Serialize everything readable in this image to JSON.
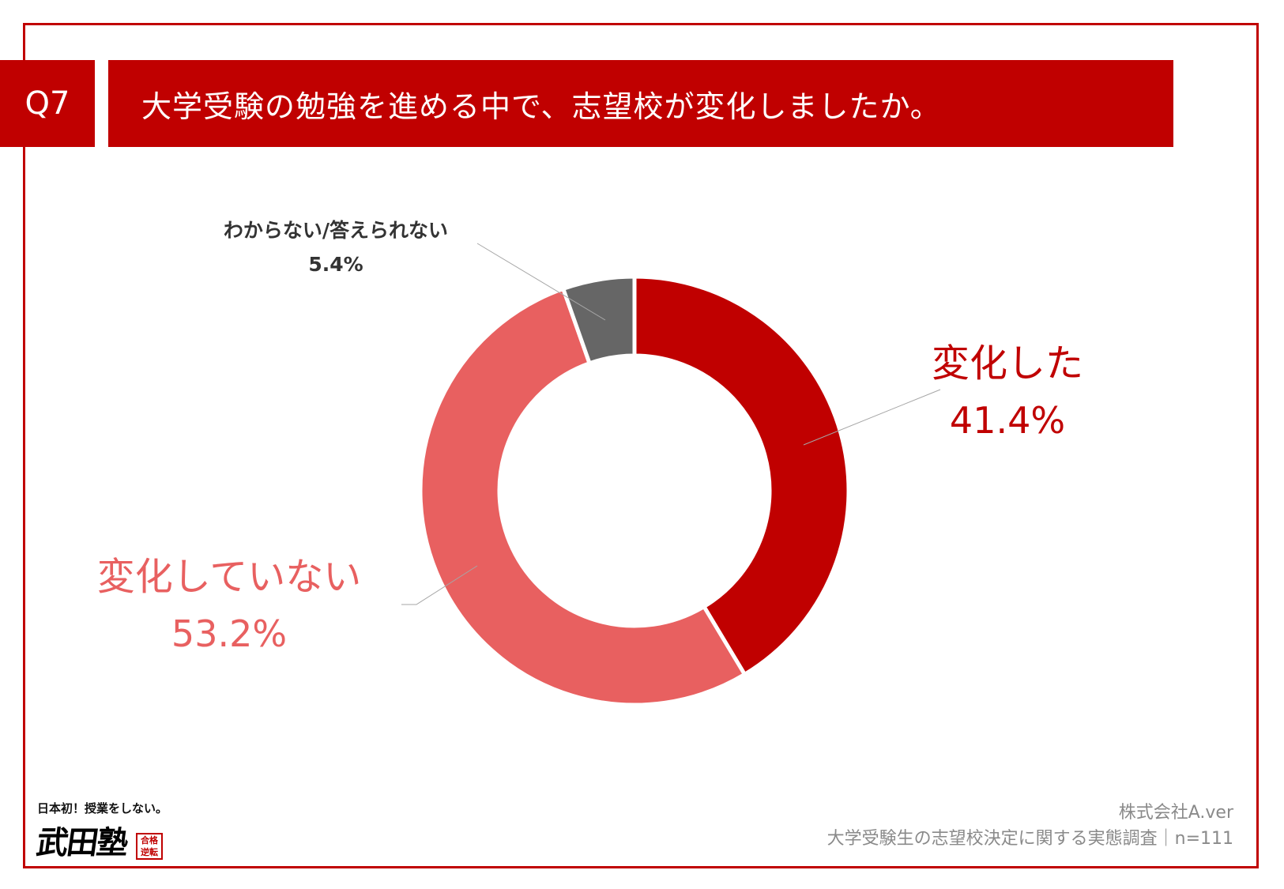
{
  "header": {
    "question_no": "Q7",
    "title": "大学受験の勉強を進める中で、志望校が変化しましたか。"
  },
  "chart_data": {
    "type": "pie",
    "donut": true,
    "slices": [
      {
        "label": "変化した",
        "value": 41.4,
        "value_label": "41.4%",
        "color": "#c00000"
      },
      {
        "label": "変化していない",
        "value": 53.2,
        "value_label": "53.2%",
        "color": "#e86060"
      },
      {
        "label": "わからない/答えられない",
        "value": 5.4,
        "value_label": "5.4%",
        "color": "#666666"
      }
    ],
    "start": "top",
    "direction": "clockwise"
  },
  "logo": {
    "tagline": "日本初！授業をしない。",
    "name": "武田塾",
    "stamp": "合格逆転"
  },
  "source": {
    "company": "株式会社A.ver",
    "survey": "大学受験生の志望校決定に関する実態調査｜n=111"
  }
}
